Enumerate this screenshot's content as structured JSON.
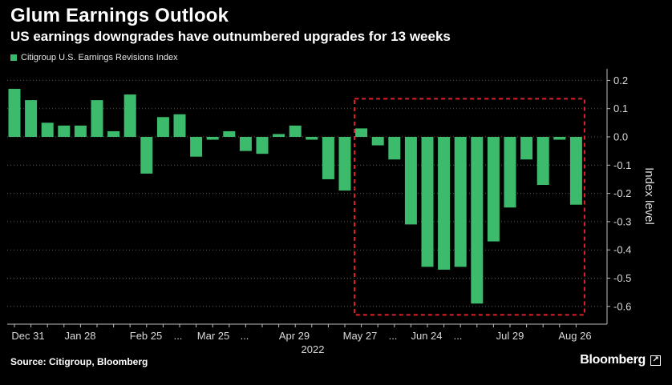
{
  "title": "Glum Earnings Outlook",
  "subtitle": "US earnings downgrades have outnumbered upgrades for 13 weeks",
  "source": "Source: Citigroup, Bloomberg",
  "brand": "Bloomberg",
  "brand_icon": "external-link-icon",
  "colors": {
    "bar": "#3dbb6c",
    "highlight_box": "#e0202a",
    "grid": "#5a5a5a",
    "axis_text": "#d9d9d9",
    "background": "#000000"
  },
  "chart_data": {
    "type": "bar",
    "legend": {
      "entries": [
        "Citigroup U.S. Earnings Revisions Index"
      ],
      "placement": "top-left"
    },
    "x_tick_labels": [
      "Dec 31",
      "Jan 28",
      "Feb 25",
      "...",
      "Mar 25",
      "...",
      "Apr 29",
      "May 27",
      "...",
      "Jun 24",
      "...",
      "Jul 29",
      "Aug 26"
    ],
    "x_year_label": "2022",
    "ylabel": "Index level",
    "ylim": [
      -0.65,
      0.22
    ],
    "y_ticks": [
      0.2,
      0.1,
      0.0,
      -0.1,
      -0.2,
      -0.3,
      -0.4,
      -0.5,
      -0.6
    ],
    "y_tick_labels": [
      "0.2",
      "0.1",
      "0.0",
      "-0.1",
      "-0.2",
      "-0.3",
      "-0.4",
      "-0.5",
      "-0.6"
    ],
    "y_axis_side": "right",
    "grid": "horizontal dotted",
    "series": [
      {
        "name": "Citigroup U.S. Earnings Revisions Index",
        "x": [
          "2021-12-31",
          "2022-01-07",
          "2022-01-14",
          "2022-01-21",
          "2022-01-28",
          "2022-02-04",
          "2022-02-11",
          "2022-02-18",
          "2022-02-25",
          "2022-03-04",
          "2022-03-11",
          "2022-03-18",
          "2022-03-25",
          "2022-04-01",
          "2022-04-08",
          "2022-04-15",
          "2022-04-22",
          "2022-04-29",
          "2022-05-06",
          "2022-05-13",
          "2022-05-20",
          "2022-05-27",
          "2022-06-03",
          "2022-06-10",
          "2022-06-17",
          "2022-06-24",
          "2022-07-01",
          "2022-07-08",
          "2022-07-15",
          "2022-07-22",
          "2022-07-29",
          "2022-08-05",
          "2022-08-12",
          "2022-08-19",
          "2022-08-26"
        ],
        "values": [
          0.17,
          0.13,
          0.05,
          0.04,
          0.04,
          0.13,
          0.02,
          0.15,
          -0.13,
          0.07,
          0.08,
          -0.07,
          -0.01,
          0.02,
          -0.05,
          -0.06,
          0.01,
          0.04,
          -0.01,
          -0.15,
          -0.19,
          0.03,
          -0.03,
          -0.08,
          -0.31,
          -0.46,
          -0.47,
          -0.46,
          -0.59,
          -0.37,
          -0.25,
          -0.08,
          -0.17,
          -0.01,
          -0.24
        ]
      }
    ],
    "annotations": [
      {
        "type": "dashed-box",
        "x_start": "2022-05-27",
        "x_end": "2022-08-26",
        "y_top": 0.135,
        "y_bottom": -0.63
      }
    ]
  }
}
